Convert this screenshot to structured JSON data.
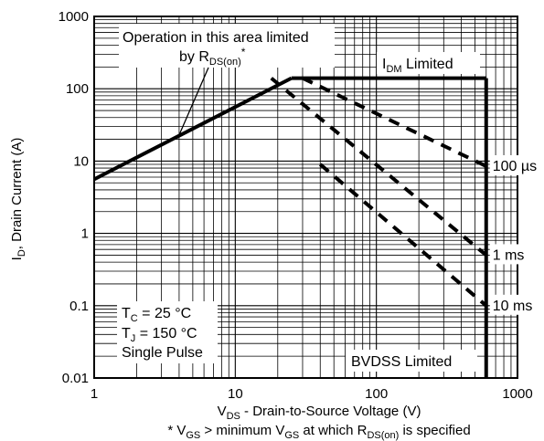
{
  "chart_data": {
    "type": "line",
    "x_scale": "log",
    "y_scale": "log",
    "xlim": [
      1,
      1000
    ],
    "ylim": [
      0.01,
      1000
    ],
    "grid": true,
    "x_ticks": [
      "1",
      "10",
      "100",
      "1000"
    ],
    "y_ticks": [
      "0.01",
      "0.1",
      "1",
      "10",
      "100",
      "1000"
    ],
    "xlabel": {
      "main": "V",
      "sub": "DS",
      "rest": " - Drain-to-Source Voltage (V)"
    },
    "ylabel": {
      "main": "I",
      "sub": "D",
      "rest": ", Drain Current (A)"
    },
    "footnote": {
      "p1": "* V",
      "s1": "GS",
      "p2": " > minimum V",
      "s2": "GS",
      "p3": " at which R",
      "s3": "DS(on)",
      "p4": " is specified"
    },
    "annotations": {
      "rds_line1": "Operation in this area limited",
      "rds_line2_main": "by R",
      "rds_line2_sub": "DS(on)",
      "rds_line2_sup": "*",
      "idm_main": "I",
      "idm_sub": "DM",
      "idm_rest": " Limited",
      "bvdss": "BVDSS Limited",
      "tc_main": "T",
      "tc_sub": "C",
      "tc_rest": " = 25 °C",
      "tj_main": "T",
      "tj_sub": "J",
      "tj_rest": " = 150 °C",
      "single_pulse": "Single Pulse"
    },
    "series": [
      {
        "label": "",
        "style": "solid",
        "x": [
          1,
          25
        ],
        "y": [
          5.6,
          140
        ]
      },
      {
        "label": "",
        "style": "solid",
        "x": [
          25,
          600
        ],
        "y": [
          140,
          140
        ]
      },
      {
        "label": "",
        "style": "solid",
        "x": [
          600,
          600
        ],
        "y": [
          140,
          0.01
        ]
      },
      {
        "label": "100 µs",
        "style": "dashed",
        "x": [
          30,
          600
        ],
        "y": [
          140,
          8.5
        ]
      },
      {
        "label": "1 ms",
        "style": "dashed",
        "x": [
          18,
          600
        ],
        "y": [
          140,
          0.5
        ]
      },
      {
        "label": "10 ms",
        "style": "dashed",
        "x": [
          40,
          600
        ],
        "y": [
          9,
          0.1
        ]
      }
    ]
  }
}
